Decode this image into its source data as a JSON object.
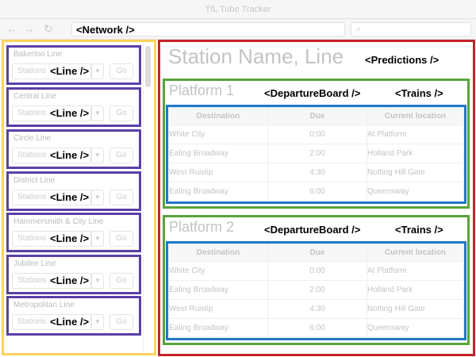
{
  "window": {
    "title": "TfL Tube Tracker"
  },
  "toolbar": {
    "back_icon": "arrow-left-icon",
    "forward_icon": "arrow-right-icon",
    "reload_icon": "reload-icon",
    "search_icon": "search-icon"
  },
  "components": {
    "network": "<Network />",
    "line": "<Line />",
    "predictions": "<Predictions />",
    "departure_board": "<DepartureBoard />",
    "trains": "<Trains />"
  },
  "component_colors": {
    "network": "#fdd35a",
    "line": "#5b3fa8",
    "predictions": "#c4232a",
    "departure_board": "#5aa33c",
    "trains": "#1f78c8"
  },
  "network": {
    "lines": [
      {
        "name": "Bakerloo Line",
        "select": "Stations",
        "go": "Go"
      },
      {
        "name": "Central Line",
        "select": "Stations",
        "go": "Go"
      },
      {
        "name": "Circle Line",
        "select": "Stations",
        "go": "Go"
      },
      {
        "name": "District Line",
        "select": "Stations",
        "go": "Go"
      },
      {
        "name": "Hammersmith & City Line",
        "select": "Stations",
        "go": "Go"
      },
      {
        "name": "Jubilee Line",
        "select": "Stations",
        "go": "Go"
      },
      {
        "name": "Metropolitan Line",
        "select": "Stations",
        "go": "Go"
      }
    ]
  },
  "predictions": {
    "station": "Station Name, Line",
    "columns": [
      "Destination",
      "Due",
      "Current location"
    ],
    "platforms": [
      {
        "title": "Platform 1",
        "trains": [
          [
            "White City",
            "0:00",
            "At Platform"
          ],
          [
            "Ealing Broadway",
            "2:00",
            "Holland Park"
          ],
          [
            "West Ruislip",
            "4:30",
            "Notting Hill Gate"
          ],
          [
            "Ealing Broadway",
            "6:00",
            "Queensway"
          ]
        ]
      },
      {
        "title": "Platform 2",
        "trains": [
          [
            "White City",
            "0:00",
            "At Platform"
          ],
          [
            "Ealing Broadway",
            "2:00",
            "Holland Park"
          ],
          [
            "West Ruislip",
            "4:30",
            "Notting Hill Gate"
          ],
          [
            "Ealing Broadway",
            "6:00",
            "Queensway"
          ]
        ]
      }
    ]
  }
}
